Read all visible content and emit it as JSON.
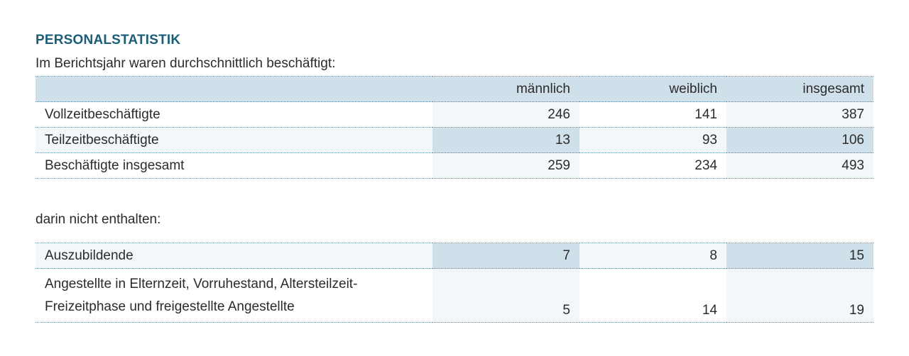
{
  "title": "PERSONALSTATISTIK",
  "subtitle": "Im Berichtsjahr waren durchschnittlich beschäftigt:",
  "table1": {
    "headers": [
      "",
      "männlich",
      "weiblich",
      "insgesamt"
    ],
    "rows": [
      {
        "label": "Vollzeitbeschäftigte",
        "maennlich": "246",
        "weiblich": "141",
        "insgesamt": "387"
      },
      {
        "label": "Teilzeitbeschäftigte",
        "maennlich": "13",
        "weiblich": "93",
        "insgesamt": "106"
      },
      {
        "label": "Beschäftigte insgesamt",
        "maennlich": "259",
        "weiblich": "234",
        "insgesamt": "493"
      }
    ]
  },
  "note": "darin nicht enthalten:",
  "table2": {
    "rows": [
      {
        "label": "Auszubildende",
        "maennlich": "7",
        "weiblich": "8",
        "insgesamt": "15"
      },
      {
        "label_line1": "Angestellte in Elternzeit, Vorruhestand, Altersteilzeit-",
        "label_line2": "Freizeitphase und freigestellte Angestellte",
        "maennlich": "5",
        "weiblich": "14",
        "insgesamt": "19"
      }
    ]
  }
}
